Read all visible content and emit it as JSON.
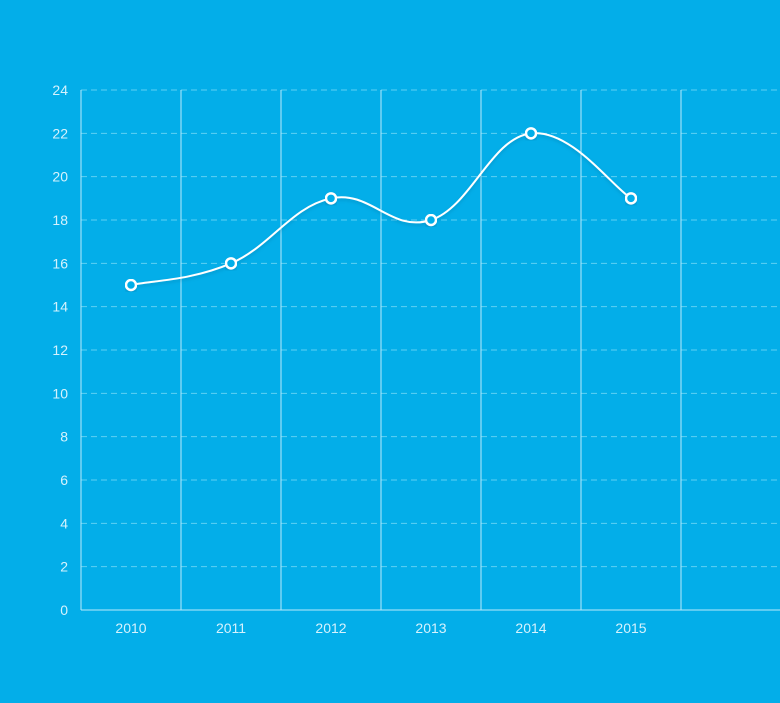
{
  "colors": {
    "background": "#03aee9",
    "line": "#ffffff",
    "grid": "#5fd0f4",
    "vertical_grid": "#b9eafb",
    "tick_label": "#d6f2fd",
    "marker_fill": "#03aee9"
  },
  "chart_data": {
    "type": "line",
    "title": "",
    "xlabel": "",
    "ylabel": "",
    "categories": [
      "2010",
      "2011",
      "2012",
      "2013",
      "2014",
      "2015"
    ],
    "series": [
      {
        "values": [
          15,
          16,
          19,
          18,
          22,
          19
        ]
      }
    ],
    "ylim": [
      0,
      24
    ],
    "yticks": [
      0,
      2,
      4,
      6,
      8,
      10,
      12,
      14,
      16,
      18,
      20,
      22,
      24
    ],
    "smooth": true,
    "markers": "hollow-circle",
    "grid": "horizontal dashed, vertical solid between categories",
    "legend": "none"
  }
}
